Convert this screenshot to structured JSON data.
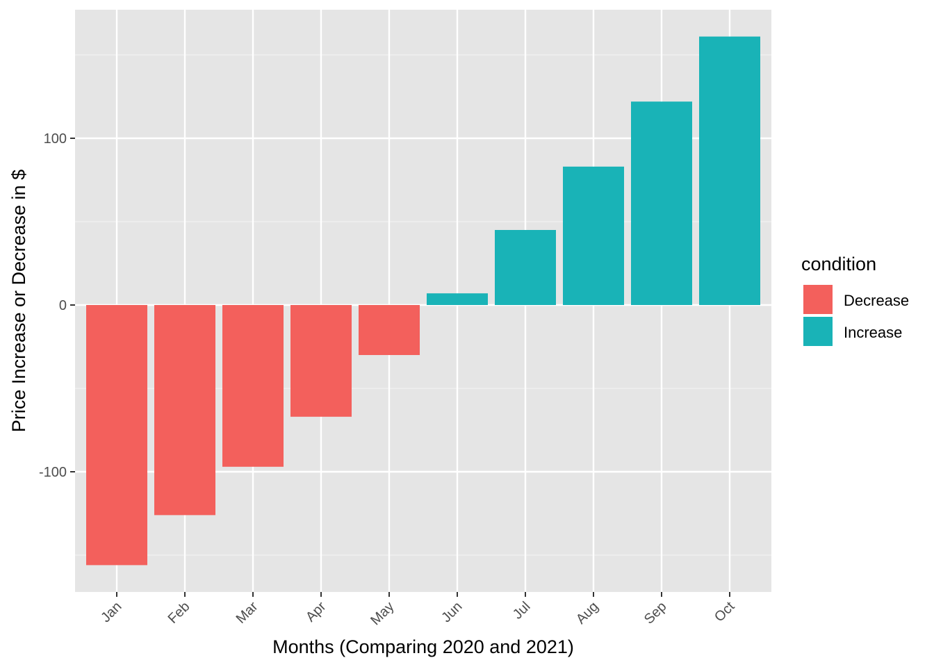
{
  "chart_data": {
    "type": "bar",
    "categories": [
      "Jan",
      "Feb",
      "Mar",
      "Apr",
      "May",
      "Jun",
      "Jul",
      "Aug",
      "Sep",
      "Oct"
    ],
    "values": [
      -156,
      -126,
      -97,
      -67,
      -30,
      7,
      45,
      83,
      122,
      161
    ],
    "conditions": [
      "Decrease",
      "Decrease",
      "Decrease",
      "Decrease",
      "Decrease",
      "Increase",
      "Increase",
      "Increase",
      "Increase",
      "Increase"
    ],
    "xlabel": "Months (Comparing 2020 and 2021)",
    "ylabel": "Price Increase or Decrease in $",
    "ylim": [
      -170,
      175
    ],
    "yticks": [
      -100,
      0,
      100
    ],
    "ytick_labels": [
      "-100",
      "0",
      "100"
    ],
    "grid": true,
    "legend": {
      "title": "condition",
      "placement": "right",
      "entries": [
        {
          "label": "Decrease",
          "color": "#F8766D"
        },
        {
          "label": "Increase",
          "color": "#00BFC4"
        }
      ]
    },
    "colors": {
      "Decrease": "#F3605C",
      "Increase": "#19B3B7",
      "panel": "#E5E5E5",
      "grid": "#FFFFFF"
    }
  }
}
